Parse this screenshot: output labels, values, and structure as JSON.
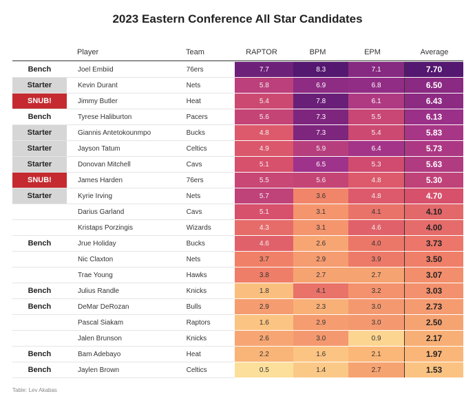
{
  "chart_data": {
    "type": "table",
    "title": "2023 Eastern Conference All Star Candidates",
    "columns": [
      "Player",
      "Team",
      "RAPTOR",
      "BPM",
      "EPM",
      "Average"
    ],
    "credit": "Table: Lev Akabas",
    "rows": [
      {
        "status": "Bench",
        "player": "Joel Embiid",
        "team": "76ers",
        "raptor": "7.7",
        "bpm": "8.3",
        "epm": "7.1",
        "average": "7.70"
      },
      {
        "status": "Starter",
        "player": "Kevin Durant",
        "team": "Nets",
        "raptor": "5.8",
        "bpm": "6.9",
        "epm": "6.8",
        "average": "6.50"
      },
      {
        "status": "SNUB!",
        "player": "Jimmy Butler",
        "team": "Heat",
        "raptor": "5.4",
        "bpm": "7.8",
        "epm": "6.1",
        "average": "6.43"
      },
      {
        "status": "Bench",
        "player": "Tyrese Haliburton",
        "team": "Pacers",
        "raptor": "5.6",
        "bpm": "7.3",
        "epm": "5.5",
        "average": "6.13"
      },
      {
        "status": "Starter",
        "player": "Giannis Antetokounmpo",
        "team": "Bucks",
        "raptor": "4.8",
        "bpm": "7.3",
        "epm": "5.4",
        "average": "5.83"
      },
      {
        "status": "Starter",
        "player": "Jayson Tatum",
        "team": "Celtics",
        "raptor": "4.9",
        "bpm": "5.9",
        "epm": "6.4",
        "average": "5.73"
      },
      {
        "status": "Starter",
        "player": "Donovan Mitchell",
        "team": "Cavs",
        "raptor": "5.1",
        "bpm": "6.5",
        "epm": "5.3",
        "average": "5.63"
      },
      {
        "status": "SNUB!",
        "player": "James Harden",
        "team": "76ers",
        "raptor": "5.5",
        "bpm": "5.6",
        "epm": "4.8",
        "average": "5.30"
      },
      {
        "status": "Starter",
        "player": "Kyrie Irving",
        "team": "Nets",
        "raptor": "5.7",
        "bpm": "3.6",
        "epm": "4.8",
        "average": "4.70"
      },
      {
        "status": "",
        "player": "Darius Garland",
        "team": "Cavs",
        "raptor": "5.1",
        "bpm": "3.1",
        "epm": "4.1",
        "average": "4.10"
      },
      {
        "status": "",
        "player": "Kristaps Porzingis",
        "team": "Wizards",
        "raptor": "4.3",
        "bpm": "3.1",
        "epm": "4.6",
        "average": "4.00"
      },
      {
        "status": "Bench",
        "player": "Jrue Holiday",
        "team": "Bucks",
        "raptor": "4.6",
        "bpm": "2.6",
        "epm": "4.0",
        "average": "3.73"
      },
      {
        "status": "",
        "player": "Nic Claxton",
        "team": "Nets",
        "raptor": "3.7",
        "bpm": "2.9",
        "epm": "3.9",
        "average": "3.50"
      },
      {
        "status": "",
        "player": "Trae Young",
        "team": "Hawks",
        "raptor": "3.8",
        "bpm": "2.7",
        "epm": "2.7",
        "average": "3.07"
      },
      {
        "status": "Bench",
        "player": "Julius Randle",
        "team": "Knicks",
        "raptor": "1.8",
        "bpm": "4.1",
        "epm": "3.2",
        "average": "3.03"
      },
      {
        "status": "Bench",
        "player": "DeMar DeRozan",
        "team": "Bulls",
        "raptor": "2.9",
        "bpm": "2.3",
        "epm": "3.0",
        "average": "2.73"
      },
      {
        "status": "",
        "player": "Pascal Siakam",
        "team": "Raptors",
        "raptor": "1.6",
        "bpm": "2.9",
        "epm": "3.0",
        "average": "2.50"
      },
      {
        "status": "",
        "player": "Jalen Brunson",
        "team": "Knicks",
        "raptor": "2.6",
        "bpm": "3.0",
        "epm": "0.9",
        "average": "2.17"
      },
      {
        "status": "Bench",
        "player": "Bam Adebayo",
        "team": "Heat",
        "raptor": "2.2",
        "bpm": "1.6",
        "epm": "2.1",
        "average": "1.97"
      },
      {
        "status": "Bench",
        "player": "Jaylen Brown",
        "team": "Celtics",
        "raptor": "0.5",
        "bpm": "1.4",
        "epm": "2.7",
        "average": "1.53"
      }
    ]
  }
}
